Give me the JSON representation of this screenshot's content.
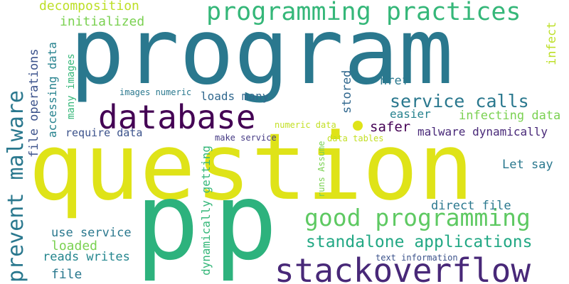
{
  "palette": {
    "teal": "#2a788e",
    "dark_teal": "#24868e",
    "purple": "#440154",
    "indigo": "#482878",
    "navy": "#3b528b",
    "green": "#22a884",
    "bright_green": "#35b779",
    "light_green": "#7ad151",
    "yellow": "#fde725",
    "lime": "#bddf26"
  },
  "words": {
    "program": "program",
    "question": "question",
    "p1": "p",
    "p2": "p",
    "database": "database",
    "stackoverflow": "stackoverflow",
    "programming_practices": "programming practices",
    "good_programming": "good programming",
    "prevent_malware": "prevent malware",
    "standalone_applications": "standalone applications",
    "service_calls": "service calls",
    "decomposition": "decomposition",
    "initialized": "initialized",
    "accessing_data": "accessing data",
    "file_operations": "file operations",
    "many_images": "many images",
    "loads_many": "loads many",
    "images_numeric": "images numeric",
    "require_data": "require data",
    "make_service": "make service",
    "numeric_data": "numeric data",
    "data_tables": "data tables",
    "runs_assume": "runs Assume",
    "dynamically_getting": "dynamically getting",
    "stored": "stored",
    "href": "href",
    "infect": "infect",
    "safer": "safer",
    "easier": "easier",
    "infecting_data": "infecting data",
    "malware_dynamically": "malware dynamically",
    "let_say": "Let say",
    "direct_file": "direct file",
    "use_service": "use service",
    "loaded": "loaded",
    "reads_writes": "reads writes",
    "file": "file",
    "text_information": "text information"
  }
}
